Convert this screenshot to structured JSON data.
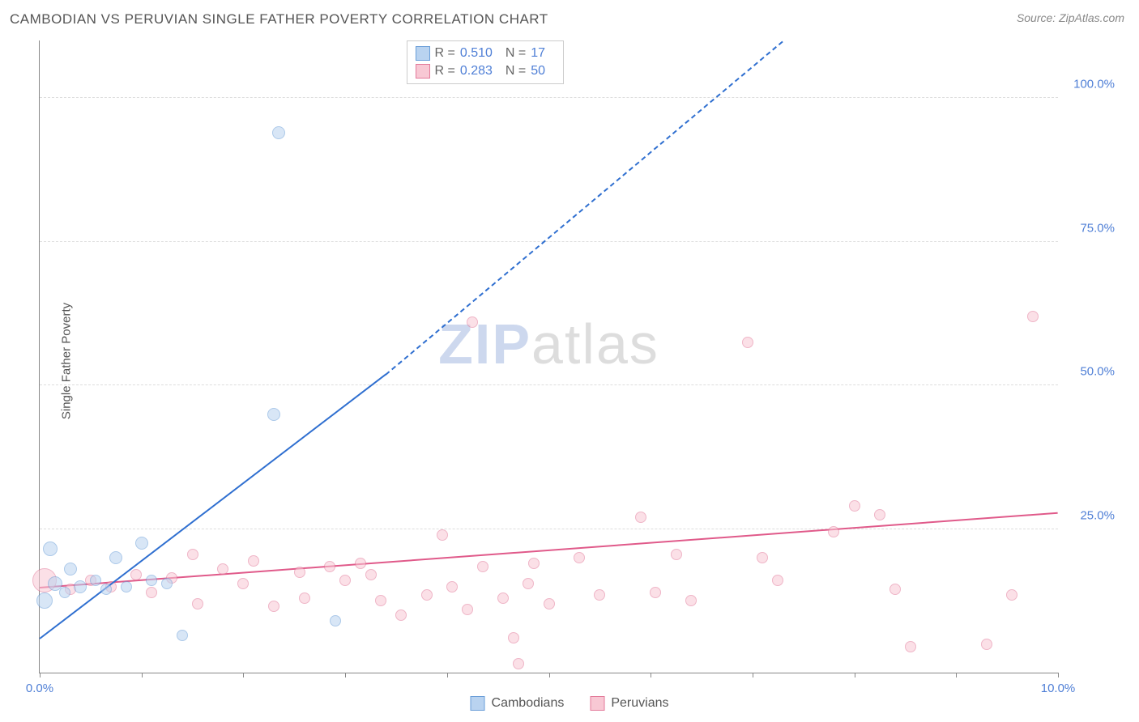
{
  "title": "CAMBODIAN VS PERUVIAN SINGLE FATHER POVERTY CORRELATION CHART",
  "source": "Source: ZipAtlas.com",
  "ylabel": "Single Father Poverty",
  "watermark": {
    "left": "ZIP",
    "right": "atlas"
  },
  "chart": {
    "type": "scatter",
    "background_color": "#ffffff",
    "grid_color": "#dddddd",
    "axis_color": "#888888",
    "xlim": [
      0,
      10
    ],
    "ylim": [
      0,
      110
    ],
    "xticks": [
      0,
      1,
      2,
      3,
      4,
      5,
      6,
      7,
      8,
      9,
      10
    ],
    "xtick_labels": {
      "0": "0.0%",
      "10": "10.0%"
    },
    "yticks": [
      25,
      50,
      75,
      100
    ],
    "ytick_labels": [
      "25.0%",
      "50.0%",
      "75.0%",
      "100.0%"
    ],
    "label_color": "#4f7fd6",
    "label_fontsize": 15
  },
  "series": [
    {
      "name": "Cambodians",
      "fill": "#b9d3f0",
      "stroke": "#6a9ed8",
      "fill_opacity": 0.55,
      "marker_radius_default": 7,
      "r_value": "0.510",
      "n_value": "17",
      "trend": {
        "x1": 0.0,
        "y1": 6.0,
        "x2": 3.4,
        "y2": 52.0,
        "dash_to_x": 7.3,
        "dash_to_y": 110.0,
        "color": "#2f6fd0",
        "width": 2
      },
      "points": [
        {
          "x": 0.1,
          "y": 21.5,
          "r": 9
        },
        {
          "x": 0.15,
          "y": 15.5,
          "r": 9
        },
        {
          "x": 0.25,
          "y": 14.0,
          "r": 7
        },
        {
          "x": 0.3,
          "y": 18.0,
          "r": 8
        },
        {
          "x": 0.4,
          "y": 15.0,
          "r": 8
        },
        {
          "x": 0.55,
          "y": 16.0,
          "r": 7
        },
        {
          "x": 0.65,
          "y": 14.5,
          "r": 7
        },
        {
          "x": 0.75,
          "y": 20.0,
          "r": 8
        },
        {
          "x": 0.85,
          "y": 15.0,
          "r": 7
        },
        {
          "x": 1.0,
          "y": 22.5,
          "r": 8
        },
        {
          "x": 1.1,
          "y": 16.0,
          "r": 7
        },
        {
          "x": 1.25,
          "y": 15.5,
          "r": 7
        },
        {
          "x": 1.4,
          "y": 6.5,
          "r": 7
        },
        {
          "x": 2.3,
          "y": 45.0,
          "r": 8
        },
        {
          "x": 2.35,
          "y": 94.0,
          "r": 8
        },
        {
          "x": 2.9,
          "y": 9.0,
          "r": 7
        },
        {
          "x": 0.05,
          "y": 12.5,
          "r": 10
        }
      ]
    },
    {
      "name": "Peruvians",
      "fill": "#f8c8d4",
      "stroke": "#e37a9a",
      "fill_opacity": 0.55,
      "marker_radius_default": 7,
      "r_value": "0.283",
      "n_value": "50",
      "trend": {
        "x1": 0.0,
        "y1": 15.0,
        "x2": 10.0,
        "y2": 28.0,
        "color": "#e05a8a",
        "width": 2
      },
      "points": [
        {
          "x": 0.05,
          "y": 16.0,
          "r": 15
        },
        {
          "x": 0.3,
          "y": 14.5,
          "r": 7
        },
        {
          "x": 0.5,
          "y": 16.0,
          "r": 7
        },
        {
          "x": 0.7,
          "y": 15.0,
          "r": 7
        },
        {
          "x": 0.95,
          "y": 17.0,
          "r": 7
        },
        {
          "x": 1.1,
          "y": 14.0,
          "r": 7
        },
        {
          "x": 1.3,
          "y": 16.5,
          "r": 7
        },
        {
          "x": 1.5,
          "y": 20.5,
          "r": 7
        },
        {
          "x": 1.55,
          "y": 12.0,
          "r": 7
        },
        {
          "x": 1.8,
          "y": 18.0,
          "r": 7
        },
        {
          "x": 2.0,
          "y": 15.5,
          "r": 7
        },
        {
          "x": 2.1,
          "y": 19.5,
          "r": 7
        },
        {
          "x": 2.3,
          "y": 11.5,
          "r": 7
        },
        {
          "x": 2.55,
          "y": 17.5,
          "r": 7
        },
        {
          "x": 2.6,
          "y": 13.0,
          "r": 7
        },
        {
          "x": 2.85,
          "y": 18.5,
          "r": 7
        },
        {
          "x": 3.0,
          "y": 16.0,
          "r": 7
        },
        {
          "x": 3.15,
          "y": 19.0,
          "r": 7
        },
        {
          "x": 3.25,
          "y": 17.0,
          "r": 7
        },
        {
          "x": 3.35,
          "y": 12.5,
          "r": 7
        },
        {
          "x": 3.55,
          "y": 10.0,
          "r": 7
        },
        {
          "x": 3.8,
          "y": 13.5,
          "r": 7
        },
        {
          "x": 3.95,
          "y": 24.0,
          "r": 7
        },
        {
          "x": 4.05,
          "y": 15.0,
          "r": 7
        },
        {
          "x": 4.2,
          "y": 11.0,
          "r": 7
        },
        {
          "x": 4.25,
          "y": 61.0,
          "r": 7
        },
        {
          "x": 4.35,
          "y": 18.5,
          "r": 7
        },
        {
          "x": 4.55,
          "y": 13.0,
          "r": 7
        },
        {
          "x": 4.65,
          "y": 6.0,
          "r": 7
        },
        {
          "x": 4.7,
          "y": 1.5,
          "r": 7
        },
        {
          "x": 4.8,
          "y": 15.5,
          "r": 7
        },
        {
          "x": 4.85,
          "y": 19.0,
          "r": 7
        },
        {
          "x": 5.0,
          "y": 12.0,
          "r": 7
        },
        {
          "x": 5.3,
          "y": 20.0,
          "r": 7
        },
        {
          "x": 5.5,
          "y": 13.5,
          "r": 7
        },
        {
          "x": 5.9,
          "y": 27.0,
          "r": 7
        },
        {
          "x": 6.05,
          "y": 14.0,
          "r": 7
        },
        {
          "x": 6.25,
          "y": 20.5,
          "r": 7
        },
        {
          "x": 6.4,
          "y": 12.5,
          "r": 7
        },
        {
          "x": 6.95,
          "y": 57.5,
          "r": 7
        },
        {
          "x": 7.1,
          "y": 20.0,
          "r": 7
        },
        {
          "x": 7.25,
          "y": 16.0,
          "r": 7
        },
        {
          "x": 7.8,
          "y": 24.5,
          "r": 7
        },
        {
          "x": 8.0,
          "y": 29.0,
          "r": 7
        },
        {
          "x": 8.25,
          "y": 27.5,
          "r": 7
        },
        {
          "x": 8.4,
          "y": 14.5,
          "r": 7
        },
        {
          "x": 8.55,
          "y": 4.5,
          "r": 7
        },
        {
          "x": 9.3,
          "y": 5.0,
          "r": 7
        },
        {
          "x": 9.55,
          "y": 13.5,
          "r": 7
        },
        {
          "x": 9.75,
          "y": 62.0,
          "r": 7
        }
      ]
    }
  ],
  "legend_top": {
    "r_label": "R =",
    "n_label": "N ="
  },
  "legend_bottom": [
    {
      "label": "Cambodians",
      "fill": "#b9d3f0",
      "stroke": "#6a9ed8"
    },
    {
      "label": "Peruvians",
      "fill": "#f8c8d4",
      "stroke": "#e37a9a"
    }
  ]
}
